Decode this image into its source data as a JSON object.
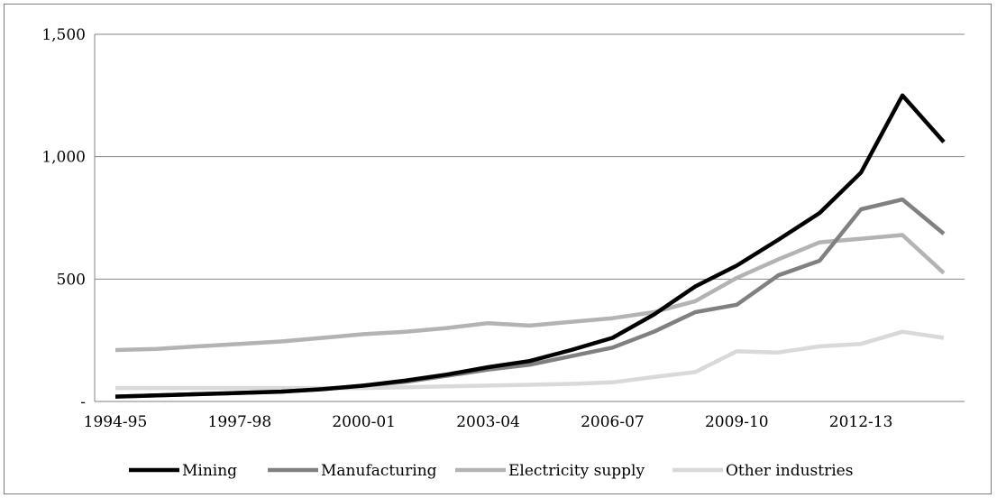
{
  "chart_data": {
    "type": "line",
    "title": "",
    "xlabel": "",
    "ylabel": "",
    "ylim": [
      0,
      1500
    ],
    "y_ticks": [
      0,
      500,
      1000,
      1500
    ],
    "y_tick_labels": [
      "-",
      "500",
      "1,000",
      "1,500"
    ],
    "x": [
      "1994-95",
      "1995-96",
      "1996-97",
      "1997-98",
      "1998-99",
      "1999-00",
      "2000-01",
      "2001-02",
      "2002-03",
      "2003-04",
      "2004-05",
      "2005-06",
      "2006-07",
      "2007-08",
      "2008-09",
      "2009-10",
      "2010-11",
      "2011-12",
      "2012-13",
      "2013-14",
      "2014-15"
    ],
    "x_tick_labels": [
      "1994-95",
      "1997-98",
      "2000-01",
      "2003-04",
      "2006-07",
      "2009-10",
      "2012-13"
    ],
    "grid": "horizontal",
    "legend_position": "bottom",
    "series": [
      {
        "name": "Mining",
        "color": "#000000",
        "values": [
          20,
          25,
          30,
          35,
          40,
          50,
          65,
          85,
          110,
          140,
          165,
          210,
          260,
          355,
          470,
          555,
          660,
          770,
          935,
          1250,
          1060
        ]
      },
      {
        "name": "Manufacturing",
        "color": "#808080",
        "values": [
          20,
          25,
          30,
          35,
          40,
          50,
          65,
          80,
          105,
          130,
          150,
          185,
          220,
          285,
          365,
          395,
          515,
          575,
          785,
          825,
          685
        ]
      },
      {
        "name": "Electricity supply",
        "color": "#b3b3b3",
        "values": [
          210,
          215,
          225,
          235,
          245,
          260,
          275,
          285,
          300,
          320,
          310,
          325,
          340,
          365,
          410,
          505,
          580,
          650,
          665,
          680,
          525
        ]
      },
      {
        "name": "Other industries",
        "color": "#d9d9d9",
        "values": [
          55,
          55,
          55,
          55,
          55,
          55,
          55,
          58,
          62,
          65,
          68,
          72,
          78,
          100,
          120,
          205,
          200,
          225,
          235,
          285,
          260
        ]
      }
    ]
  }
}
